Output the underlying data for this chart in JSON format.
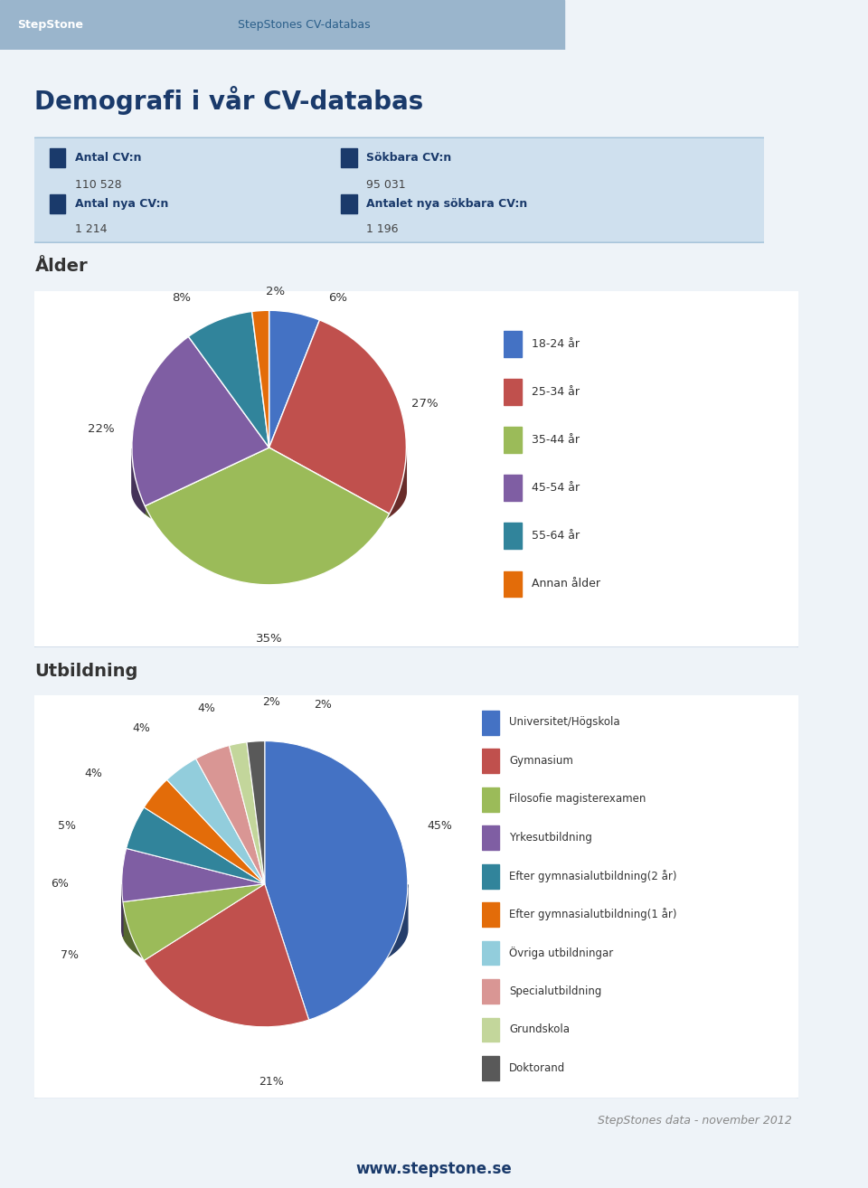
{
  "page_bg": "#eef3f8",
  "header_bg": "#9ab5cc",
  "header_text": "StepStone",
  "header_center": "StepStones CV-databas",
  "main_title": "Demografi i vår CV-databas",
  "stats_bg": "#cfe0ee",
  "stats": [
    {
      "label": "Antal CV:n",
      "value": "110 528"
    },
    {
      "label": "Sökbara CV:n",
      "value": "95 031"
    },
    {
      "label": "Antal nya CV:n",
      "value": "1 214"
    },
    {
      "label": "Antalet nya sökbara CV:n",
      "value": "1 196"
    }
  ],
  "alder_title": "Ålder",
  "alder_labels": [
    "18-24 år",
    "25-34 år",
    "35-44 år",
    "45-54 år",
    "55-64 år",
    "Annan ålder"
  ],
  "alder_values": [
    6,
    27,
    35,
    22,
    8,
    2
  ],
  "alder_colors": [
    "#4472c4",
    "#c0504d",
    "#9bbb59",
    "#7f5ea3",
    "#31849b",
    "#e36c09"
  ],
  "alder_pct_labels": [
    "6%",
    "27%",
    "35%",
    "22%",
    "8%",
    "2%"
  ],
  "utbildning_title": "Utbildning",
  "utbildning_labels": [
    "Universitet/Högskola",
    "Gymnasium",
    "Filosofie magisterexamen",
    "Yrkesutbildning",
    "Efter gymnasialutbildning(2 år)",
    "Efter gymnasialutbildning(1 år)",
    "Övriga utbildningar",
    "Specialutbildning",
    "Grundskola",
    "Doktorand"
  ],
  "utbildning_values": [
    45,
    21,
    7,
    6,
    5,
    4,
    4,
    4,
    2,
    2
  ],
  "utbildning_colors": [
    "#4472c4",
    "#c0504d",
    "#9bbb59",
    "#7f5ea3",
    "#31849b",
    "#e36c09",
    "#92cddc",
    "#d99694",
    "#c3d69b",
    "#595959"
  ],
  "utbildning_pct_labels": [
    "45%",
    "21%",
    "7%",
    "6%",
    "5%",
    "4%",
    "4%",
    "4%",
    "2%",
    "2%"
  ],
  "footer_text": "StepStones data - november 2012",
  "footer_bg_text": "www.stepstone.se",
  "footer_bg": "#9ab5cc"
}
